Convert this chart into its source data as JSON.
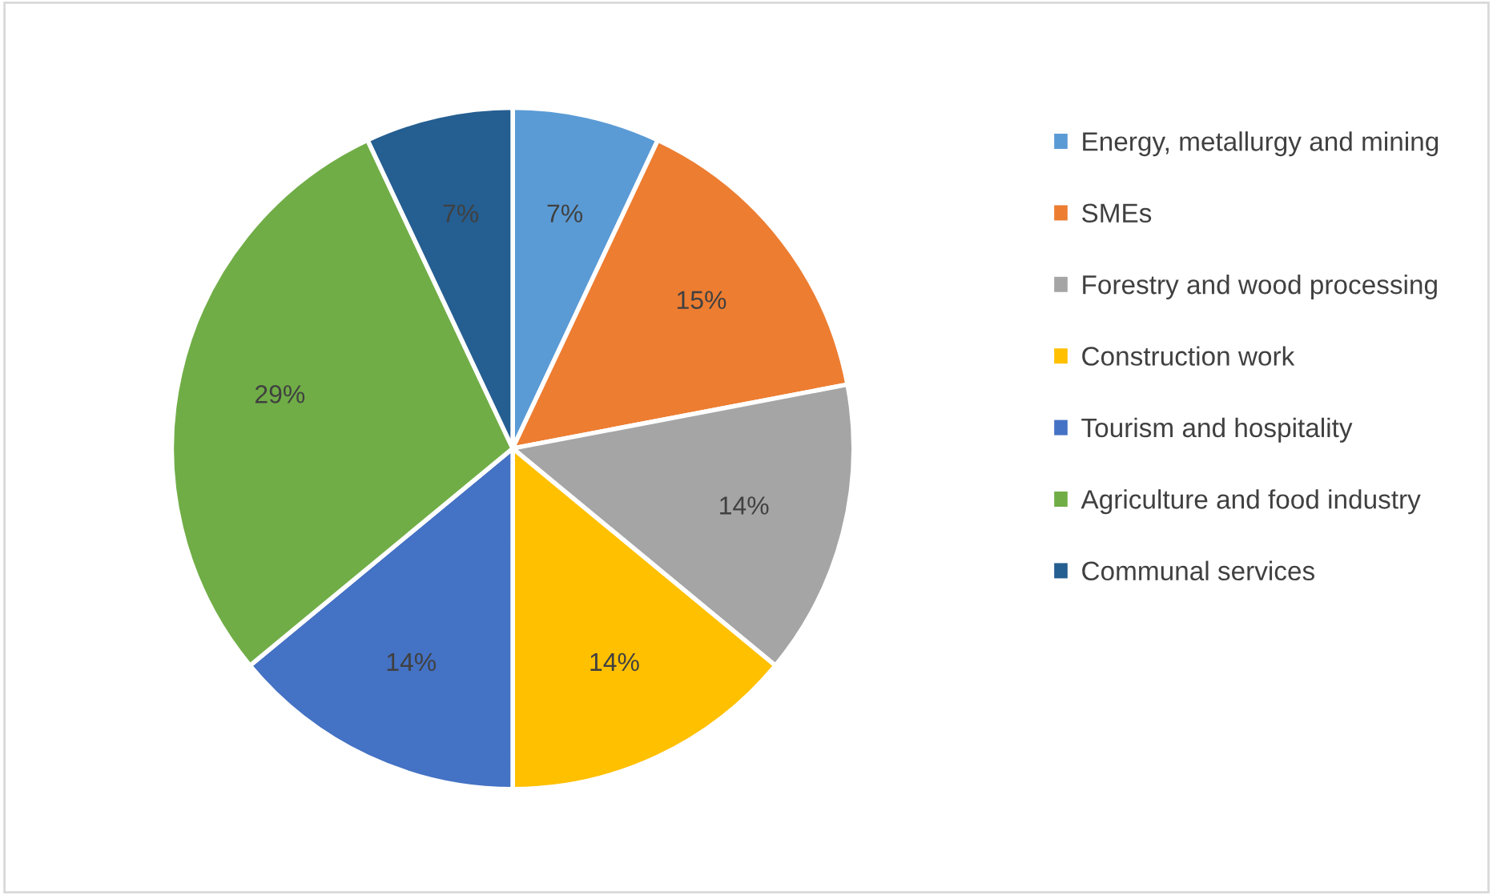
{
  "chart_data": {
    "type": "pie",
    "categories": [
      "Energy, metallurgy and mining",
      "SMEs",
      "Forestry and wood processing",
      "Construction work",
      "Tourism and hospitality",
      "Agriculture and food industry",
      "Communal services"
    ],
    "values": [
      7,
      15,
      14,
      14,
      14,
      29,
      7
    ],
    "colors": [
      "#5b9bd5",
      "#ed7d31",
      "#a5a5a5",
      "#ffc000",
      "#4472c4",
      "#70ad47",
      "#255e91"
    ],
    "value_labels": [
      "7%",
      "15%",
      "14%",
      "14%",
      "14%",
      "29%",
      "7%"
    ],
    "legend": "right"
  }
}
